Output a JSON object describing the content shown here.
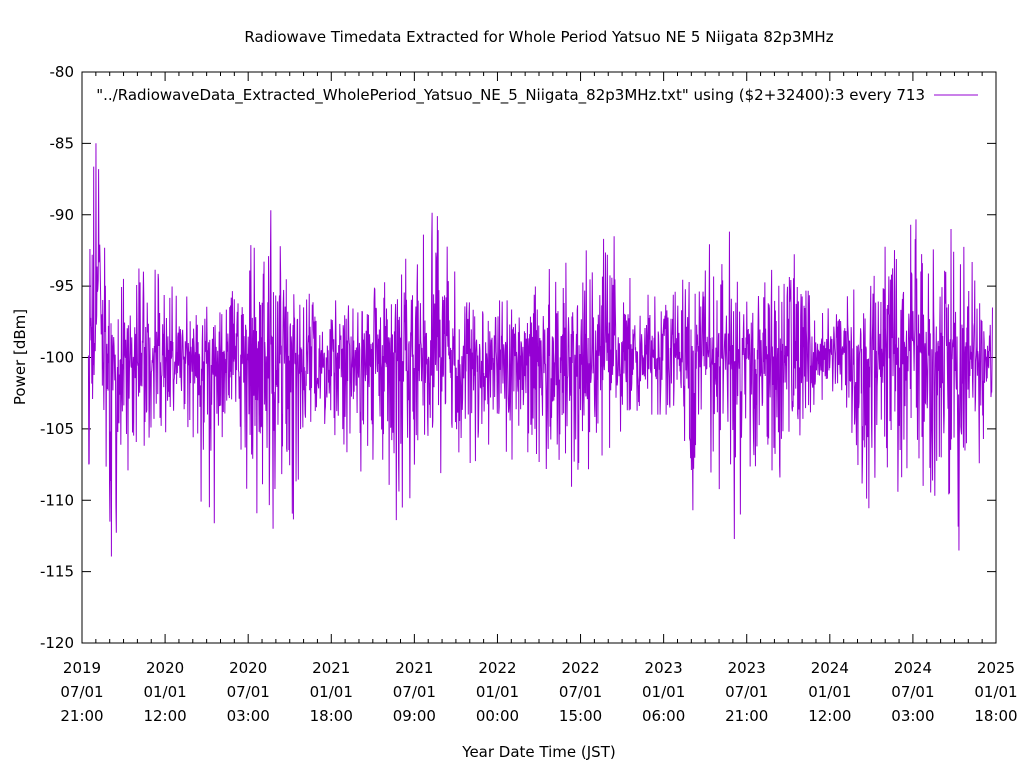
{
  "chart_data": {
    "type": "line",
    "title": "Radiowave Timedata Extracted for Whole Period Yatsuo NE 5 Niigata 82p3MHz",
    "xlabel": "Year Date Time (JST)",
    "ylabel": "Power [dBm]",
    "ylim": [
      -120,
      -80
    ],
    "yticks": [
      -120,
      -115,
      -110,
      -105,
      -100,
      -95,
      -90,
      -85,
      -80
    ],
    "xlim": [
      "2019-07-01 21:00",
      "2025-01-01 18:00"
    ],
    "xticks": [
      {
        "year": "2019",
        "date": "07/01",
        "time": "21:00"
      },
      {
        "year": "2020",
        "date": "01/01",
        "time": "12:00"
      },
      {
        "year": "2020",
        "date": "07/01",
        "time": "03:00"
      },
      {
        "year": "2021",
        "date": "01/01",
        "time": "18:00"
      },
      {
        "year": "2021",
        "date": "07/01",
        "time": "09:00"
      },
      {
        "year": "2022",
        "date": "01/01",
        "time": "00:00"
      },
      {
        "year": "2022",
        "date": "07/01",
        "time": "15:00"
      },
      {
        "year": "2023",
        "date": "01/01",
        "time": "06:00"
      },
      {
        "year": "2023",
        "date": "07/01",
        "time": "21:00"
      },
      {
        "year": "2024",
        "date": "01/01",
        "time": "12:00"
      },
      {
        "year": "2024",
        "date": "07/01",
        "time": "03:00"
      },
      {
        "year": "2025",
        "date": "01/01",
        "time": "18:00"
      }
    ],
    "grid": false,
    "legend_position": "top-right",
    "series": [
      {
        "name": "\"../RadiowaveData_Extracted_WholePeriod_Yatsuo_NE_5_Niigata_82p3MHz.txt\" using ($2+32400):3 every 713",
        "color": "#9400d3",
        "x_start": "2019-07-16",
        "x_end": "2024-12-25",
        "envelope": [
          [
            "2019-07-16",
            -119.0,
            -83.0
          ],
          [
            "2019-07-25",
            -104.0,
            -83.5
          ],
          [
            "2019-08-10",
            -92.0,
            -84.0
          ],
          [
            "2019-08-20",
            -112.0,
            -92.0
          ],
          [
            "2019-09-05",
            -116.0,
            -98.0
          ],
          [
            "2019-09-25",
            -112.0,
            -95.0
          ],
          [
            "2019-10-20",
            -109.0,
            -92.0
          ],
          [
            "2019-12-01",
            -108.0,
            -91.0
          ],
          [
            "2020-01-15",
            -106.0,
            -95.0
          ],
          [
            "2020-03-01",
            -108.0,
            -96.0
          ],
          [
            "2020-04-01",
            -112.0,
            -96.0
          ],
          [
            "2020-05-15",
            -111.0,
            -95.0
          ],
          [
            "2020-07-01",
            -111.0,
            -92.0
          ],
          [
            "2020-08-20",
            -112.0,
            -88.5
          ],
          [
            "2020-10-01",
            -112.0,
            -94.0
          ],
          [
            "2020-12-01",
            -107.0,
            -96.0
          ],
          [
            "2021-02-15",
            -107.0,
            -96.0
          ],
          [
            "2021-04-15",
            -110.0,
            -95.0
          ],
          [
            "2021-06-01",
            -112.5,
            -94.0
          ],
          [
            "2021-07-15",
            -111.0,
            -89.5
          ],
          [
            "2021-08-20",
            -110.0,
            -90.0
          ],
          [
            "2021-10-01",
            -109.0,
            -92.0
          ],
          [
            "2021-12-15",
            -106.0,
            -96.0
          ],
          [
            "2022-03-01",
            -109.0,
            -96.0
          ],
          [
            "2022-05-15",
            -110.0,
            -93.0
          ],
          [
            "2022-07-15",
            -108.0,
            -92.0
          ],
          [
            "2022-09-15",
            -106.0,
            -91.5
          ],
          [
            "2022-11-15",
            -104.0,
            -95.5
          ],
          [
            "2023-01-15",
            -104.0,
            -96.0
          ],
          [
            "2023-03-15",
            -114.0,
            -93.0
          ],
          [
            "2023-05-15",
            -114.0,
            -91.0
          ],
          [
            "2023-07-15",
            -111.0,
            -92.0
          ],
          [
            "2023-09-01",
            -112.0,
            -90.0
          ],
          [
            "2023-10-15",
            -108.0,
            -91.0
          ],
          [
            "2023-12-01",
            -103.0,
            -96.0
          ],
          [
            "2024-02-01",
            -103.0,
            -96.0
          ],
          [
            "2024-04-01",
            -111.5,
            -94.0
          ],
          [
            "2024-06-01",
            -110.0,
            -88.5
          ],
          [
            "2024-08-01",
            -109.0,
            -91.0
          ],
          [
            "2024-10-15",
            -114.0,
            -91.0
          ],
          [
            "2024-12-25",
            -103.0,
            -96.5
          ]
        ]
      }
    ]
  }
}
